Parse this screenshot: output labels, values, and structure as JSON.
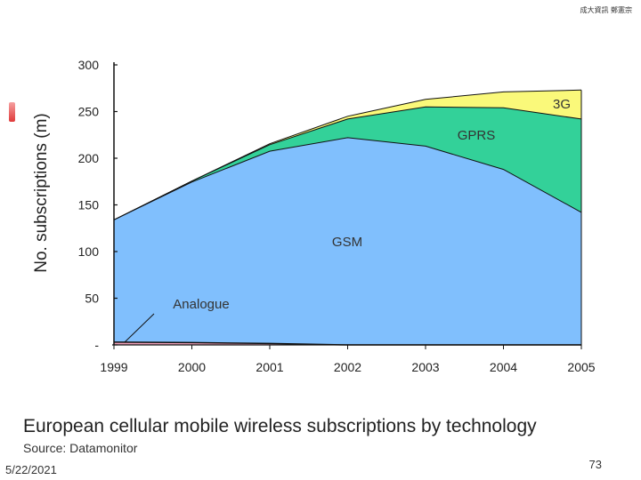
{
  "header": {
    "note": "成大資訊 鄭憲宗"
  },
  "chart_data": {
    "type": "area",
    "stacked": true,
    "title": "European cellular mobile wireless subscriptions by technology",
    "subtitle": "Source: Datamonitor",
    "xlabel": "",
    "ylabel": "No. subscriptions (m)",
    "ylim": [
      0,
      300
    ],
    "xlim": [
      1999,
      2005
    ],
    "y_ticks": [
      "300",
      "250",
      "200",
      "150",
      "100",
      "50",
      "-"
    ],
    "x_ticks": [
      "1999",
      "2000",
      "2001",
      "2002",
      "2003",
      "2004",
      "2005"
    ],
    "x": [
      1999,
      2000,
      2001,
      2002,
      2003,
      2004,
      2005
    ],
    "grid": false,
    "series": [
      {
        "name": "Analogue",
        "values": [
          3,
          2.5,
          1.5,
          0,
          0,
          0,
          0
        ],
        "color": "#f0a0b8"
      },
      {
        "name": "GSM",
        "values": [
          131,
          172,
          206,
          222,
          213,
          188,
          142
        ],
        "color": "#80bffd"
      },
      {
        "name": "GPRS",
        "values": [
          0,
          1,
          7,
          20,
          42,
          66,
          100
        ],
        "color": "#33d199"
      },
      {
        "name": "3G",
        "values": [
          0,
          0,
          1,
          3,
          8,
          17,
          31
        ],
        "color": "#faf97a"
      }
    ]
  },
  "footer": {
    "date": "5/22/2021",
    "page": "73"
  }
}
